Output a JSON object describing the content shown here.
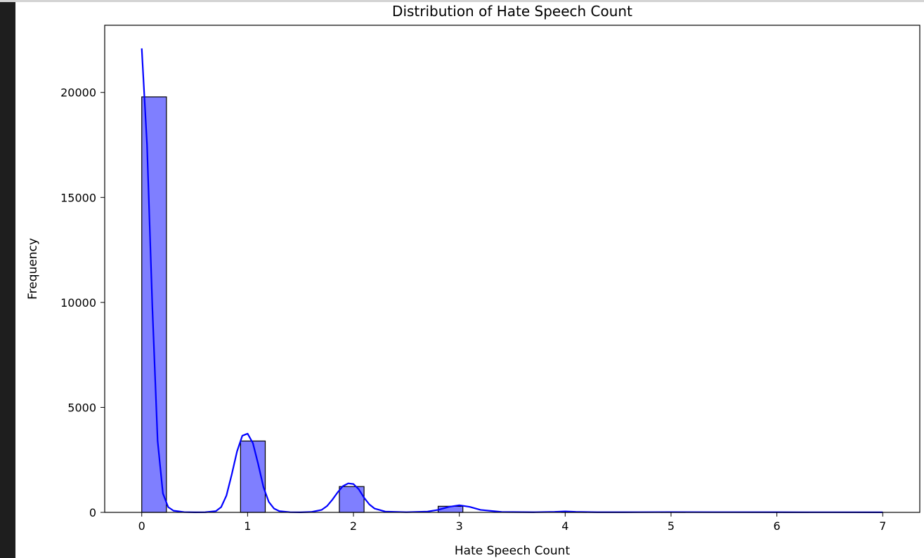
{
  "chart_data": {
    "type": "bar",
    "title": "Distribution of Hate Speech Count",
    "xlabel": "Hate Speech Count",
    "ylabel": "Frequency",
    "xlim": [
      -0.35,
      7.35
    ],
    "ylim": [
      0,
      23200
    ],
    "x_ticks": [
      0,
      1,
      2,
      3,
      4,
      5,
      6,
      7
    ],
    "x_tick_labels": [
      "0",
      "1",
      "2",
      "3",
      "4",
      "5",
      "6",
      "7"
    ],
    "y_ticks": [
      0,
      5000,
      10000,
      15000,
      20000
    ],
    "y_tick_labels": [
      "0",
      "5000",
      "10000",
      "15000",
      "20000"
    ],
    "bin_width": 0.2333,
    "bins": [
      {
        "x0": 0.0,
        "x1": 0.2333,
        "count": 19790
      },
      {
        "x0": 0.9333,
        "x1": 1.1667,
        "count": 3400
      },
      {
        "x0": 1.8667,
        "x1": 2.1,
        "count": 1230
      },
      {
        "x0": 2.8,
        "x1": 3.0333,
        "count": 290
      },
      {
        "x0": 3.9667,
        "x1": 4.2,
        "count": 25
      },
      {
        "x0": 4.9,
        "x1": 5.1333,
        "count": 8
      },
      {
        "x0": 6.0667,
        "x1": 6.3,
        "count": 4
      },
      {
        "x0": 6.7667,
        "x1": 7.0,
        "count": 2
      }
    ],
    "kde": {
      "x": [
        0.0,
        0.05,
        0.1,
        0.15,
        0.2,
        0.25,
        0.3,
        0.4,
        0.5,
        0.6,
        0.7,
        0.75,
        0.8,
        0.85,
        0.9,
        0.95,
        1.0,
        1.05,
        1.1,
        1.15,
        1.2,
        1.25,
        1.3,
        1.4,
        1.5,
        1.6,
        1.7,
        1.75,
        1.8,
        1.85,
        1.9,
        1.95,
        2.0,
        2.05,
        2.1,
        2.15,
        2.2,
        2.3,
        2.5,
        2.7,
        2.8,
        2.9,
        3.0,
        3.1,
        3.2,
        3.4,
        3.7,
        3.9,
        4.0,
        4.1,
        4.3,
        4.7,
        5.0,
        5.5,
        6.0,
        6.5,
        7.0
      ],
      "y": [
        22100,
        17500,
        9800,
        3400,
        900,
        250,
        80,
        15,
        5,
        8,
        60,
        250,
        800,
        1800,
        2900,
        3650,
        3750,
        3300,
        2300,
        1200,
        500,
        180,
        60,
        10,
        5,
        20,
        120,
        300,
        600,
        950,
        1250,
        1380,
        1350,
        1100,
        700,
        380,
        180,
        40,
        10,
        40,
        120,
        260,
        340,
        260,
        120,
        20,
        8,
        25,
        45,
        25,
        8,
        10,
        15,
        10,
        8,
        6,
        5
      ]
    },
    "bar_color": "#7f7fff",
    "bar_edge_color": "#000000",
    "kde_color": "#0000ff",
    "grid": false,
    "legend": false
  }
}
